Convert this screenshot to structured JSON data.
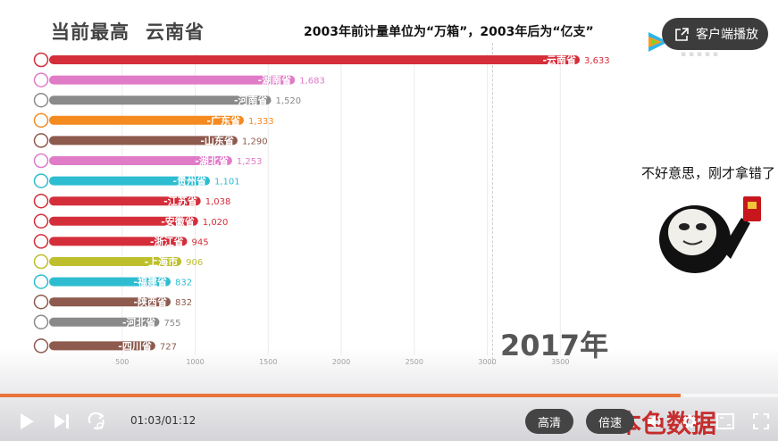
{
  "header": {
    "title": "当前最高",
    "leader": "云南省",
    "note": "2003年前计量单位为“万箱”，2003年后为“亿支”"
  },
  "chart_data": {
    "type": "bar",
    "orientation": "horizontal",
    "categories": [
      "云南省",
      "湖南省",
      "河南省",
      "广东省",
      "山东省",
      "湖北省",
      "贵州省",
      "江苏省",
      "安徽省",
      "浙江省",
      "上海市",
      "福建省",
      "陕西省",
      "河北省",
      "四川省"
    ],
    "bar_labels": [
      "-云南省",
      "-湖南省",
      "-河南省",
      "-广东省",
      "-山东省",
      "-湖北省",
      "-贵州省",
      "-江苏省",
      "-安徽省",
      "-浙江省",
      "-上海市",
      "-福建省",
      "-陕西省",
      "-河北省",
      "-四川省"
    ],
    "values": [
      3633,
      1683,
      1520,
      1333,
      1290,
      1253,
      1101,
      1038,
      1020,
      945,
      906,
      832,
      832,
      755,
      727
    ],
    "value_labels": [
      "3,633",
      "1,683",
      "1,520",
      "1,333",
      "1,290",
      "1,253",
      "1,101",
      "1,038",
      "1,020",
      "945",
      "906",
      "832",
      "832",
      "755",
      "727"
    ],
    "colors": [
      "#d42e3a",
      "#e07bc8",
      "#8a8a8a",
      "#f58a20",
      "#8e5a4e",
      "#e07bc8",
      "#2ebdd0",
      "#d42e3a",
      "#d42e3a",
      "#d42e3a",
      "#bdbf2d",
      "#2ebdd0",
      "#8e5a4e",
      "#8a8a8a",
      "#8e5a4e"
    ],
    "x_ticks": [
      500,
      1000,
      1500,
      2000,
      2500,
      3000,
      3500
    ],
    "x_tick_labels": [
      "500",
      "1000",
      "1500",
      "2000",
      "2500",
      "3000",
      "3500"
    ],
    "xlim": [
      0,
      3700
    ],
    "year": "2017年"
  },
  "player": {
    "client_button": "客户端播放",
    "current_time": "01:03",
    "total_time": "/01:12",
    "progress": 0.875,
    "quality": "高清",
    "speed": "倍速",
    "watermark": "本色数据"
  },
  "meme": {
    "caption": "不好意思，刚才拿错了"
  }
}
